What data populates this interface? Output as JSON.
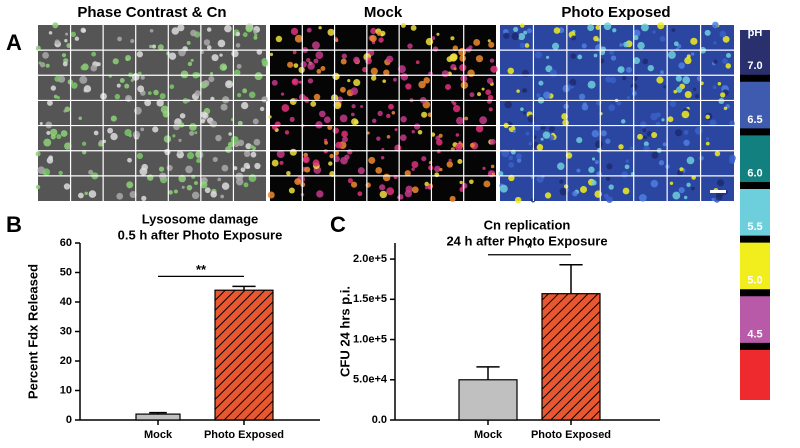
{
  "panel_labels": [
    "A",
    "B",
    "C"
  ],
  "panel_a": {
    "image_titles": [
      "Phase Contrast & Cn",
      "Mock",
      "Photo Exposed"
    ],
    "colorbar": {
      "title": "pH",
      "ylim": [
        4,
        7.45
      ],
      "ticks": [
        {
          "value": 4.5,
          "label": "4.5"
        },
        {
          "value": 5,
          "label": "5.0"
        },
        {
          "value": 5.5,
          "label": "5.5"
        },
        {
          "value": 6,
          "label": "6.0"
        },
        {
          "value": 6.5,
          "label": "6.5"
        },
        {
          "value": 7,
          "label": "7.0"
        }
      ],
      "colors": [
        "#ee2a2e",
        "#b85aa8",
        "#f2ee1e",
        "#6ecfdc",
        "#138080",
        "#3f5bb0",
        "#2a2f6e"
      ]
    }
  },
  "chart_data": [
    {
      "type": "bar",
      "title": "Lysosome damage",
      "subtitle": "0.5 h after Photo Exposure",
      "ylabel": "Percent Fdx Released",
      "categories": [
        "Mock",
        "Photo Exposed"
      ],
      "values": [
        2,
        44
      ],
      "errors": [
        0.5,
        1.3
      ],
      "colors": [
        "#c0c0c0",
        "#e8572f"
      ],
      "hatch": [
        false,
        true
      ],
      "ylim": [
        0,
        60
      ],
      "yticks": [
        0,
        10,
        20,
        30,
        40,
        50,
        60
      ],
      "significance": "**"
    },
    {
      "type": "bar",
      "title": "Cn replication",
      "subtitle": "24 h after Photo Exposure",
      "ylabel": "CFU 24 hrs p.i.",
      "categories": [
        "Mock",
        "Photo Exposed"
      ],
      "values": [
        50000,
        157000
      ],
      "errors": [
        16000,
        36000
      ],
      "colors": [
        "#c0c0c0",
        "#e8572f"
      ],
      "hatch": [
        false,
        true
      ],
      "ylim": [
        0,
        220000
      ],
      "yticks": [
        {
          "value": 0,
          "label": "0.0"
        },
        {
          "value": 50000,
          "label": "5.0e+4"
        },
        {
          "value": 100000,
          "label": "1.0e+5"
        },
        {
          "value": 150000,
          "label": "1.5e+5"
        },
        {
          "value": 200000,
          "label": "2.0e+5"
        }
      ],
      "significance": "*"
    }
  ]
}
